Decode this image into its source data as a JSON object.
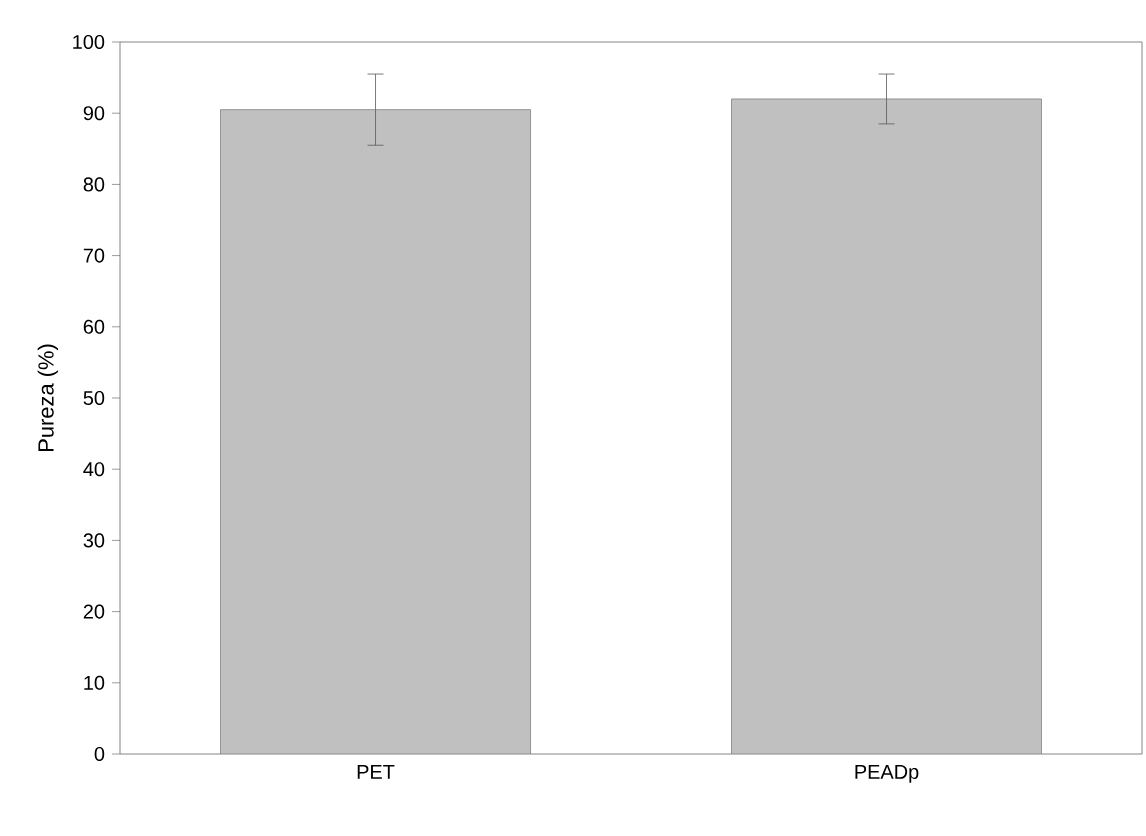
{
  "chart_data": {
    "type": "bar",
    "ylabel": "Pureza (%)",
    "categories": [
      "PET",
      "PEADp"
    ],
    "values": [
      90.5,
      92
    ],
    "errors": [
      5,
      3.5
    ],
    "color": "#c0c0c0",
    "ylim": [
      0,
      100
    ],
    "yticks": [
      0,
      10,
      20,
      30,
      40,
      50,
      60,
      70,
      80,
      90,
      100
    ],
    "grid": false
  }
}
